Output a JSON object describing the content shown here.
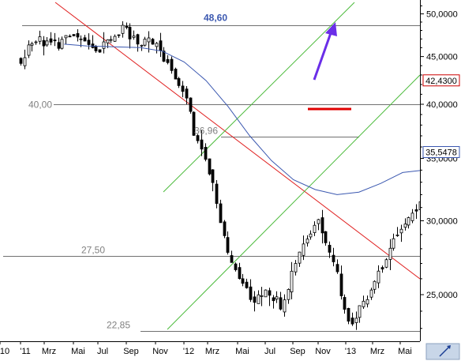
{
  "chart_data": {
    "type": "candlestick",
    "scale": "log",
    "ylim": [
      22,
      51.5
    ],
    "y_ticks": [
      {
        "value": 25,
        "label": "25,0000"
      },
      {
        "value": 30,
        "label": "30,0000"
      },
      {
        "value": 35,
        "label": "35,0000"
      },
      {
        "value": 40,
        "label": "40,0000"
      },
      {
        "value": 45,
        "label": "45,0000"
      },
      {
        "value": 50,
        "label": "50,0000"
      }
    ],
    "x_ticks": [
      "10",
      "'11",
      "Mrz",
      "Mai",
      "Jul",
      "Sep",
      "Nov",
      "'12",
      "Mrz",
      "Mai",
      "Jul",
      "Sep",
      "Nov",
      "'13",
      "Mrz",
      "Mai"
    ],
    "last_price": {
      "value": 42.43,
      "label": "42,4300",
      "color": "#cc0000"
    },
    "moving_average": {
      "value": 35.5478,
      "label": "35,5478",
      "color": "#3b58b0"
    },
    "levels": [
      {
        "value": 48.6,
        "label": "48,60",
        "color": "#3b58b0"
      },
      {
        "value": 40.0,
        "label": "40,00",
        "color": "#808080"
      },
      {
        "value": 36.96,
        "label": "36,96",
        "color": "#808080"
      },
      {
        "value": 27.5,
        "label": "27,50",
        "color": "#808080"
      },
      {
        "value": 22.85,
        "label": "22,85",
        "color": "#808080"
      }
    ],
    "colors": {
      "downtrend": "#e02020",
      "channel": "#4cbb3c",
      "moving_average": "#3b58b0",
      "target_arrow": "#6a2ee8",
      "breakout_marker": "#e00000",
      "candles": "#000000"
    }
  }
}
